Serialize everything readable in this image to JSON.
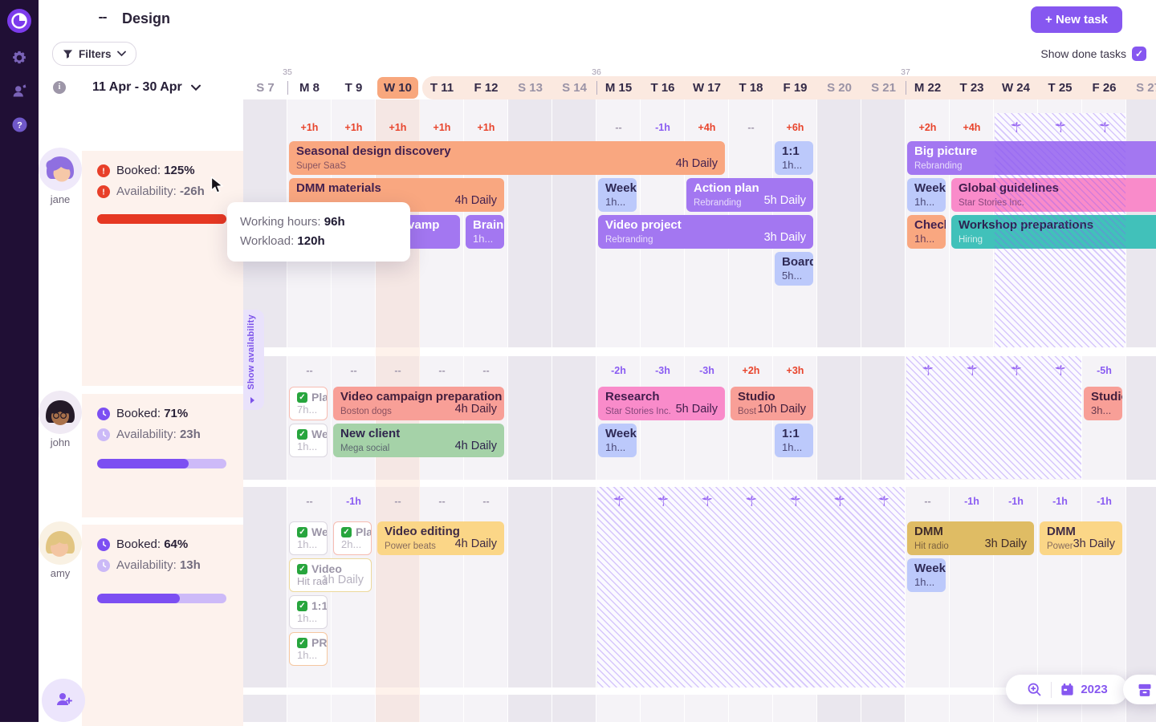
{
  "app": {
    "title": "Design",
    "new_task_label": "+ New task",
    "show_done_label": "Show done tasks",
    "filters_label": "Filters",
    "date_range": "11 Apr - 30 Apr",
    "show_availability_label": "Show availability",
    "year": "2023"
  },
  "tooltip": {
    "working_hours_label": "Working hours: ",
    "working_hours_value": "96h",
    "workload_label": "Workload: ",
    "workload_value": "120h"
  },
  "colors": {
    "accent": "#8657f0",
    "alert_red": "#e8442c",
    "booked_bar_red": "#e63823",
    "booked_bar_purple": "#7c4ff2",
    "track_purple": "#cdbaf8",
    "vacation_hatch": "#8a5cf5"
  },
  "calendar": {
    "today_index": 3,
    "range_start_index": 4,
    "week_numbers": [
      {
        "label": "35",
        "col": 1
      },
      {
        "label": "36",
        "col": 8
      },
      {
        "label": "37",
        "col": 15
      }
    ],
    "days": [
      {
        "label": "S 7",
        "weekend": true
      },
      {
        "label": "M 8",
        "weekend": false
      },
      {
        "label": "T 9",
        "weekend": false
      },
      {
        "label": "W 10",
        "weekend": false
      },
      {
        "label": "T 11",
        "weekend": false
      },
      {
        "label": "F 12",
        "weekend": false
      },
      {
        "label": "S 13",
        "weekend": true
      },
      {
        "label": "S 14",
        "weekend": true
      },
      {
        "label": "M 15",
        "weekend": false
      },
      {
        "label": "T 16",
        "weekend": false
      },
      {
        "label": "W 17",
        "weekend": false
      },
      {
        "label": "T 18",
        "weekend": false
      },
      {
        "label": "F 19",
        "weekend": false
      },
      {
        "label": "S 20",
        "weekend": true
      },
      {
        "label": "S 21",
        "weekend": true
      },
      {
        "label": "M 22",
        "weekend": false
      },
      {
        "label": "T 23",
        "weekend": false
      },
      {
        "label": "W 24",
        "weekend": false
      },
      {
        "label": "T 25",
        "weekend": false
      },
      {
        "label": "F 26",
        "weekend": false
      },
      {
        "label": "S 27",
        "weekend": true
      }
    ]
  },
  "members": [
    {
      "name": "jane",
      "booked_label": "Booked:",
      "booked_value": "125%",
      "availability_label": "Availability:",
      "availability_value": "-26h",
      "status": "alert",
      "progress_percent": 100,
      "bar_color": "#e63823",
      "vacation": {
        "from": 17,
        "to": 19
      },
      "markers": [
        {
          "c": 1,
          "t": "+1h",
          "k": "over"
        },
        {
          "c": 2,
          "t": "+1h",
          "k": "over"
        },
        {
          "c": 3,
          "t": "+1h",
          "k": "over"
        },
        {
          "c": 4,
          "t": "+1h",
          "k": "over"
        },
        {
          "c": 5,
          "t": "+1h",
          "k": "over"
        },
        {
          "c": 8,
          "t": "--",
          "k": "none"
        },
        {
          "c": 9,
          "t": "-1h",
          "k": "under"
        },
        {
          "c": 10,
          "t": "+4h",
          "k": "over"
        },
        {
          "c": 11,
          "t": "--",
          "k": "none"
        },
        {
          "c": 12,
          "t": "+6h",
          "k": "over"
        },
        {
          "c": 15,
          "t": "+2h",
          "k": "over"
        },
        {
          "c": 16,
          "t": "+4h",
          "k": "over"
        }
      ],
      "tasks": [
        {
          "lane": 0,
          "from": 1,
          "to": 10,
          "color": "orange",
          "title": "Seasonal design discovery",
          "sub": "Super SaaS",
          "right": "4h Daily"
        },
        {
          "lane": 0,
          "from": 12,
          "to": 12,
          "color": "blue",
          "title": "1:1",
          "sub": "1h..."
        },
        {
          "lane": 0,
          "from": 15,
          "to": 20,
          "color": "purple",
          "title": "Big picture",
          "sub": "Rebranding"
        },
        {
          "lane": 1,
          "from": 1,
          "to": 5,
          "color": "orange",
          "title": "DMM materials",
          "right": "4h Daily"
        },
        {
          "lane": 1,
          "from": 8,
          "to": 8,
          "color": "blue",
          "title": "Week",
          "sub": "1h..."
        },
        {
          "lane": 1,
          "from": 10,
          "to": 12,
          "color": "purple",
          "title": "Action plan",
          "sub": "Rebranding",
          "right": "5h Daily"
        },
        {
          "lane": 1,
          "from": 15,
          "to": 15,
          "color": "blue",
          "title": "Week",
          "sub": "1h..."
        },
        {
          "lane": 1,
          "from": 16,
          "to": 20,
          "color": "pink",
          "title": "Global guidelines",
          "sub": "Star Stories Inc."
        },
        {
          "lane": 2,
          "from": 3,
          "to": 4,
          "color": "purple",
          "title": "r Revamp",
          "sub": "g"
        },
        {
          "lane": 2,
          "from": 5,
          "to": 5,
          "color": "purple",
          "title": "Brain",
          "sub": "1h..."
        },
        {
          "lane": 2,
          "from": 8,
          "to": 12,
          "color": "purple",
          "title": "Video project",
          "sub": "Rebranding",
          "right": "3h Daily"
        },
        {
          "lane": 2,
          "from": 15,
          "to": 15,
          "color": "orange",
          "title": "Check",
          "sub": "1h..."
        },
        {
          "lane": 2,
          "from": 16,
          "to": 20,
          "color": "teal",
          "title": "Workshop preparations",
          "sub": "Hiring"
        },
        {
          "lane": 3,
          "from": 12,
          "to": 12,
          "color": "blue",
          "title": "Board",
          "sub": "5h..."
        }
      ]
    },
    {
      "name": "john",
      "booked_label": "Booked:",
      "booked_value": "71%",
      "availability_label": "Availability:",
      "availability_value": "23h",
      "status": "ok",
      "progress_percent": 71,
      "bar_color": "#7c4ff2",
      "vacation": {
        "from": 15,
        "to": 18
      },
      "markers": [
        {
          "c": 1,
          "t": "--",
          "k": "none"
        },
        {
          "c": 2,
          "t": "--",
          "k": "none"
        },
        {
          "c": 3,
          "t": "--",
          "k": "none"
        },
        {
          "c": 4,
          "t": "--",
          "k": "none"
        },
        {
          "c": 5,
          "t": "--",
          "k": "none"
        },
        {
          "c": 8,
          "t": "-2h",
          "k": "under"
        },
        {
          "c": 9,
          "t": "-3h",
          "k": "under"
        },
        {
          "c": 10,
          "t": "-3h",
          "k": "under"
        },
        {
          "c": 11,
          "t": "+2h",
          "k": "over"
        },
        {
          "c": 12,
          "t": "+3h",
          "k": "over"
        },
        {
          "c": 19,
          "t": "-5h",
          "k": "under"
        }
      ],
      "tasks": [
        {
          "lane": 0,
          "from": 1,
          "to": 1,
          "done": true,
          "border": "pink",
          "title": "Pla",
          "sub": "7h..."
        },
        {
          "lane": 0,
          "from": 2,
          "to": 5,
          "color": "salmon",
          "title": "Video campaign preparation",
          "sub": "Boston dogs",
          "right": "4h Daily"
        },
        {
          "lane": 0,
          "from": 8,
          "to": 10,
          "color": "pink",
          "title": "Research",
          "sub": "Star Stories Inc.",
          "right": "5h Daily"
        },
        {
          "lane": 0,
          "from": 11,
          "to": 12,
          "color": "salmon",
          "title": "Studio",
          "sub": "Bost",
          "right": "10h Daily"
        },
        {
          "lane": 0,
          "from": 19,
          "to": 19,
          "color": "salmon",
          "title": "Studio",
          "sub": "3h..."
        },
        {
          "lane": 1,
          "from": 1,
          "to": 1,
          "done": true,
          "border": "gray",
          "title": "We",
          "sub": "1h..."
        },
        {
          "lane": 1,
          "from": 2,
          "to": 5,
          "color": "green",
          "title": "New client",
          "sub": "Mega social",
          "right": "4h Daily"
        },
        {
          "lane": 1,
          "from": 8,
          "to": 8,
          "color": "blue",
          "title": "Week",
          "sub": "1h..."
        },
        {
          "lane": 1,
          "from": 12,
          "to": 12,
          "color": "blue",
          "title": "1:1",
          "sub": "1h..."
        }
      ]
    },
    {
      "name": "amy",
      "booked_label": "Booked:",
      "booked_value": "64%",
      "availability_label": "Availability:",
      "availability_value": "13h",
      "status": "ok",
      "progress_percent": 64,
      "bar_color": "#7c4ff2",
      "vacation": {
        "from": 8,
        "to": 14
      },
      "markers": [
        {
          "c": 1,
          "t": "--",
          "k": "none"
        },
        {
          "c": 2,
          "t": "-1h",
          "k": "under"
        },
        {
          "c": 3,
          "t": "--",
          "k": "none"
        },
        {
          "c": 4,
          "t": "--",
          "k": "none"
        },
        {
          "c": 5,
          "t": "--",
          "k": "none"
        },
        {
          "c": 15,
          "t": "--",
          "k": "none"
        },
        {
          "c": 16,
          "t": "-1h",
          "k": "under"
        },
        {
          "c": 17,
          "t": "-1h",
          "k": "under"
        },
        {
          "c": 18,
          "t": "-1h",
          "k": "under"
        },
        {
          "c": 19,
          "t": "-1h",
          "k": "under"
        }
      ],
      "tasks": [
        {
          "lane": 0,
          "from": 1,
          "to": 1,
          "done": true,
          "border": "gray",
          "title": "We",
          "sub": "1h..."
        },
        {
          "lane": 0,
          "from": 2,
          "to": 2,
          "done": true,
          "border": "pink",
          "title": "Pla",
          "sub": "2h..."
        },
        {
          "lane": 0,
          "from": 3,
          "to": 5,
          "color": "yellow",
          "title": "Video editing",
          "sub": "Power beats",
          "right": "4h Daily"
        },
        {
          "lane": 0,
          "from": 15,
          "to": 17,
          "color": "gold",
          "title": "DMM",
          "sub": "Hit radio",
          "right": "3h Daily"
        },
        {
          "lane": 0,
          "from": 18,
          "to": 19,
          "color": "yellow",
          "title": "DMM",
          "sub": "Power",
          "right": "3h Daily"
        },
        {
          "lane": 1,
          "from": 1,
          "to": 2,
          "done": true,
          "border": "yellow",
          "title": "Video",
          "sub": "Hit rad",
          "right": "1h Daily"
        },
        {
          "lane": 1,
          "from": 15,
          "to": 15,
          "color": "blue",
          "title": "Week",
          "sub": "1h..."
        },
        {
          "lane": 2,
          "from": 1,
          "to": 1,
          "done": true,
          "border": "gray",
          "title": "1:1",
          "sub": "1h..."
        },
        {
          "lane": 3,
          "from": 1,
          "to": 1,
          "done": true,
          "border": "orange",
          "title": "PR",
          "sub": "1h..."
        }
      ]
    }
  ]
}
